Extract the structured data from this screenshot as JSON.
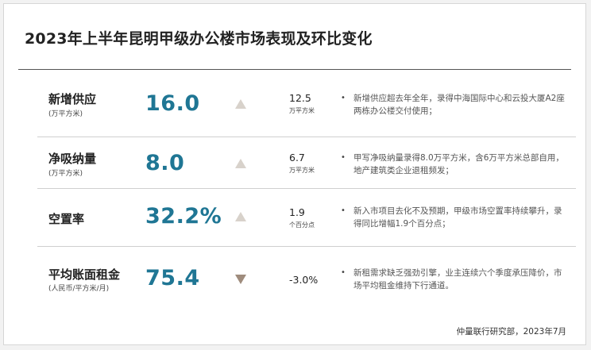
{
  "header": {
    "title": "2023年上半年昆明甲级办公楼市场表现及环比变化"
  },
  "colors": {
    "value": "#1f7694",
    "trend_up": "#d8d2cb",
    "trend_down": "#9f8c7d"
  },
  "metrics": [
    {
      "label": "新增供应",
      "sublabel": "(万平方米)",
      "value": "16.0",
      "trend": "up",
      "trend_icon": "triangle-up-icon",
      "change": "12.5",
      "change_unit": "万平方米",
      "bullet": "•",
      "note": "新增供应超去年全年，录得中海国际中心和云投大厦A2座两栋办公楼交付使用；"
    },
    {
      "label": "净吸纳量",
      "sublabel": "(万平方米)",
      "value": "8.0",
      "trend": "up",
      "trend_icon": "triangle-up-icon",
      "change": "6.7",
      "change_unit": "万平方米",
      "bullet": "•",
      "note": "甲写净吸纳量录得8.0万平方米，含6万平方米总部自用，地产建筑类企业退租频发；"
    },
    {
      "label": "空置率",
      "sublabel": "",
      "value": "32.2%",
      "trend": "up",
      "trend_icon": "triangle-up-icon",
      "change": "1.9",
      "change_unit": "个百分点",
      "bullet": "•",
      "note": "新入市项目去化不及预期，甲级市场空置率持续攀升，录得同比增幅1.9个百分点；"
    },
    {
      "label": "平均账面租金",
      "sublabel": "(人民币/平方米/月)",
      "value": "75.4",
      "trend": "down",
      "trend_icon": "triangle-down-icon",
      "change": "-3.0%",
      "change_unit": "",
      "bullet": "•",
      "note": "新租需求缺乏强劲引擎，业主连续六个季度承压降价，市场平均租金维持下行通道。"
    }
  ],
  "footer": {
    "source": "仲量联行研究部，2023年7月"
  }
}
